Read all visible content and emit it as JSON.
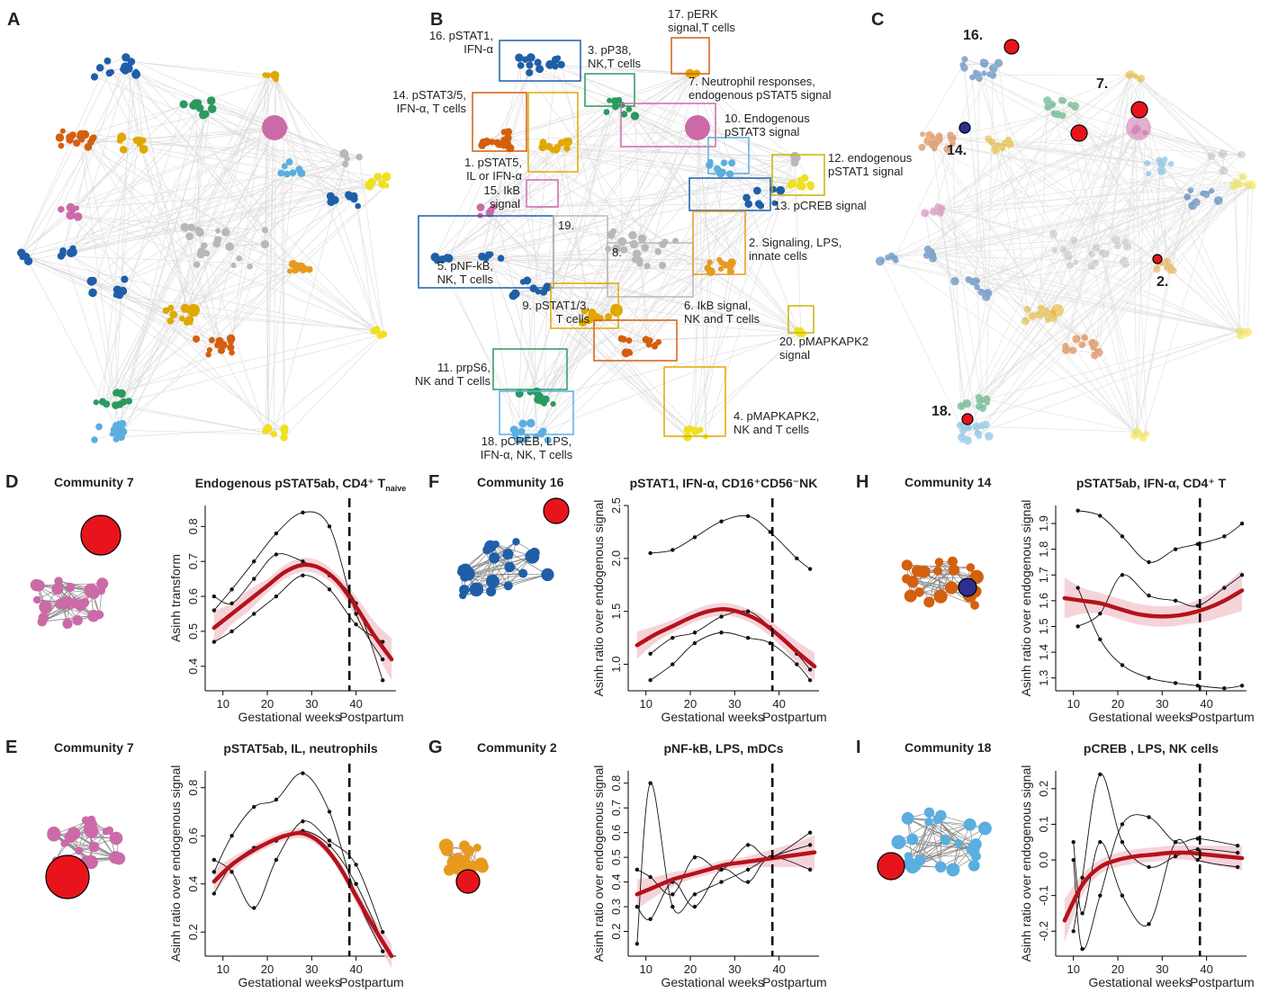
{
  "chart_data": [
    {
      "type": "network",
      "panel_label": "A"
    },
    {
      "type": "network",
      "panel_label": "B",
      "labels": [
        {
          "lines": [
            "16. pSTAT1,",
            "IFN-α"
          ],
          "color": "#1f5fa8"
        },
        {
          "lines": [
            "3. pP38,",
            "NK,T cells"
          ],
          "color": "#2a9a5e"
        },
        {
          "lines": [
            "17. pERK",
            "signal,T cells"
          ],
          "color": "#e0a800"
        },
        {
          "lines": [
            "14. pSTAT3/5,",
            "IFN-α, T cells"
          ],
          "color": "#d45f0f"
        },
        {
          "lines": [
            "7. Neutrophil responses,",
            "endogenous pSTAT5 signal"
          ],
          "color": "#cc6aa8"
        },
        {
          "lines": [
            "10. Endogenous",
            "pSTAT3 signal"
          ],
          "color": "#5aaee0"
        },
        {
          "lines": [
            "12. endogenous",
            "pSTAT1 signal"
          ],
          "color": "#c8b400"
        },
        {
          "lines": [
            "1. pSTAT5,",
            "IL or IFN-α"
          ],
          "color": "#e0a800"
        },
        {
          "lines": [
            "15. IkB",
            "signal"
          ],
          "color": "#cc6aa8"
        },
        {
          "lines": [
            "13. pCREB signal"
          ],
          "color": "#1f5fa8"
        },
        {
          "lines": [
            "19."
          ],
          "color": "#888888"
        },
        {
          "lines": [
            "8."
          ],
          "color": "#888888"
        },
        {
          "lines": [
            "2. Signaling, LPS,",
            "innate cells"
          ],
          "color": "#e89a1e"
        },
        {
          "lines": [
            "5. pNF-kB,",
            "NK, T cells"
          ],
          "color": "#1f5fa8"
        },
        {
          "lines": [
            "9. pSTAT1/3,",
            "T cells"
          ],
          "color": "#e0a800"
        },
        {
          "lines": [
            "6. IkB signal,",
            "NK and T cells"
          ],
          "color": "#d45f0f"
        },
        {
          "lines": [
            "20. pMAPKAPK2",
            "signal"
          ],
          "color": "#c8b400"
        },
        {
          "lines": [
            "11. prpS6,",
            "NK and T cells"
          ],
          "color": "#2a9a5e"
        },
        {
          "lines": [
            "4. pMAPKAPK2,",
            "NK and T cells"
          ],
          "color": "#c8b400"
        },
        {
          "lines": [
            "18. pCREB, LPS,",
            "IFN-α, NK, T cells"
          ],
          "color": "#5aaee0"
        }
      ]
    },
    {
      "type": "network",
      "panel_label": "C",
      "labels": [
        {
          "lines": [
            "16."
          ],
          "color": "#e8141c"
        },
        {
          "lines": [
            "7."
          ],
          "color": "#e8141c"
        },
        {
          "lines": [
            "14."
          ],
          "color": "#2b2f8f"
        },
        {
          "lines": [
            "2."
          ],
          "color": "#e8141c"
        },
        {
          "lines": [
            "18."
          ],
          "color": "#e8141c"
        }
      ]
    },
    {
      "type": "line",
      "panel_label": "D",
      "community": "Community 7",
      "title": "Endogenous pSTAT5ab, CD4⁺ T",
      "title_sub": "naive",
      "xlabel": "Gestational weeks",
      "xlabel2": "Postpartum",
      "ylabel": "Asinh transform",
      "xlim": [
        6,
        49
      ],
      "ylim": [
        0.33,
        0.86
      ],
      "xticks": [
        10,
        20,
        30,
        40
      ],
      "yticks": [
        0.4,
        0.5,
        0.6,
        0.7,
        0.8
      ],
      "vline": 38.5,
      "trend": {
        "color": "#b5121b",
        "band_color": "#f3c9d0",
        "x": [
          8,
          12,
          16,
          20,
          24,
          28,
          32,
          36,
          40,
          44,
          48
        ],
        "values": [
          0.51,
          0.55,
          0.59,
          0.63,
          0.67,
          0.69,
          0.68,
          0.64,
          0.57,
          0.49,
          0.42
        ],
        "lower": [
          0.46,
          0.52,
          0.56,
          0.61,
          0.65,
          0.67,
          0.66,
          0.62,
          0.54,
          0.45,
          0.36
        ],
        "upper": [
          0.56,
          0.58,
          0.62,
          0.65,
          0.69,
          0.71,
          0.7,
          0.66,
          0.6,
          0.53,
          0.48
        ]
      },
      "subject_color": "#111111",
      "subjects": [
        {
          "x": [
            8,
            12,
            17,
            22,
            28,
            34,
            40,
            46
          ],
          "values": [
            0.56,
            0.62,
            0.7,
            0.78,
            0.84,
            0.8,
            0.55,
            0.42
          ]
        },
        {
          "x": [
            8,
            12,
            17,
            22,
            28,
            34,
            40,
            46
          ],
          "values": [
            0.47,
            0.5,
            0.55,
            0.6,
            0.66,
            0.62,
            0.52,
            0.47
          ]
        },
        {
          "x": [
            8,
            12,
            17,
            22,
            28,
            34,
            40,
            46
          ],
          "values": [
            0.6,
            0.58,
            0.65,
            0.72,
            0.7,
            0.66,
            0.58,
            0.36
          ]
        }
      ]
    },
    {
      "type": "line",
      "panel_label": "E",
      "community": "Community 7",
      "title": "pSTAT5ab, IL, neutrophils",
      "xlabel": "Gestational weeks",
      "xlabel2": "Postpartum",
      "ylabel": "Asinh ratio over endogenous signal",
      "xlim": [
        6,
        49
      ],
      "ylim": [
        0.1,
        0.87
      ],
      "xticks": [
        10,
        20,
        30,
        40
      ],
      "yticks": [
        0.2,
        0.4,
        0.6,
        0.8
      ],
      "vline": 38.5,
      "trend": {
        "color": "#b5121b",
        "band_color": "#f3c9d0",
        "x": [
          8,
          12,
          16,
          20,
          24,
          28,
          32,
          36,
          40,
          44,
          48
        ],
        "values": [
          0.41,
          0.48,
          0.53,
          0.57,
          0.6,
          0.61,
          0.57,
          0.48,
          0.35,
          0.22,
          0.1
        ],
        "lower": [
          0.36,
          0.45,
          0.51,
          0.55,
          0.58,
          0.59,
          0.55,
          0.46,
          0.32,
          0.18,
          0.05
        ],
        "upper": [
          0.46,
          0.51,
          0.55,
          0.59,
          0.62,
          0.63,
          0.59,
          0.5,
          0.38,
          0.26,
          0.15
        ]
      },
      "subject_color": "#111111",
      "subjects": [
        {
          "x": [
            8,
            12,
            17,
            22,
            28,
            34,
            40,
            46
          ],
          "values": [
            0.45,
            0.6,
            0.72,
            0.75,
            0.86,
            0.7,
            0.35,
            0.12
          ]
        },
        {
          "x": [
            8,
            12,
            17,
            22,
            28,
            34,
            40,
            46
          ],
          "values": [
            0.36,
            0.48,
            0.55,
            0.58,
            0.62,
            0.56,
            0.4,
            0.16
          ]
        },
        {
          "x": [
            8,
            12,
            17,
            22,
            28,
            34,
            40,
            46
          ],
          "values": [
            0.5,
            0.45,
            0.3,
            0.5,
            0.66,
            0.58,
            0.48,
            0.2
          ]
        }
      ]
    },
    {
      "type": "line",
      "panel_label": "F",
      "community": "Community 16",
      "title": "pSTAT1, IFN-α, CD16⁺CD56⁻NK",
      "xlabel": "Gestational weeks",
      "xlabel2": "Postpartum",
      "ylabel": "Asinh ratio over endogenous signal",
      "xlim": [
        6,
        49
      ],
      "ylim": [
        0.75,
        2.5
      ],
      "xticks": [
        10,
        20,
        30,
        40
      ],
      "yticks": [
        {
          "value": 1,
          "label": "1.0"
        },
        1.5,
        {
          "value": 2,
          "label": "2.0"
        },
        2.5
      ],
      "vline": 38.5,
      "trend": {
        "color": "#b5121b",
        "band_color": "#f3c9d0",
        "x": [
          8,
          12,
          16,
          20,
          24,
          28,
          32,
          36,
          40,
          44,
          48
        ],
        "values": [
          1.18,
          1.28,
          1.36,
          1.44,
          1.5,
          1.52,
          1.48,
          1.4,
          1.27,
          1.12,
          0.98
        ],
        "lower": [
          1.05,
          1.2,
          1.3,
          1.38,
          1.44,
          1.46,
          1.42,
          1.33,
          1.19,
          1.02,
          0.85
        ],
        "upper": [
          1.31,
          1.36,
          1.42,
          1.5,
          1.56,
          1.58,
          1.54,
          1.47,
          1.35,
          1.22,
          1.11
        ]
      },
      "subject_color": "#111111",
      "subjects": [
        {
          "x": [
            11,
            16,
            21,
            27,
            33,
            38,
            44,
            47
          ],
          "values": [
            2.05,
            2.08,
            2.2,
            2.35,
            2.4,
            2.25,
            2.0,
            1.9
          ]
        },
        {
          "x": [
            11,
            16,
            21,
            27,
            33,
            38,
            44,
            47
          ],
          "values": [
            1.1,
            1.25,
            1.3,
            1.45,
            1.5,
            1.35,
            1.1,
            0.95
          ]
        },
        {
          "x": [
            11,
            16,
            21,
            27,
            33,
            38,
            44,
            47
          ],
          "values": [
            0.85,
            1.0,
            1.2,
            1.3,
            1.25,
            1.2,
            1.0,
            0.85
          ]
        }
      ]
    },
    {
      "type": "line",
      "panel_label": "G",
      "community": "Community 2",
      "title": "pNF-kB, LPS, mDCs",
      "xlabel": "Gestational weeks",
      "xlabel2": "Postpartum",
      "ylabel": "Asinh ratio over endogenous signal",
      "xlim": [
        6,
        49
      ],
      "ylim": [
        0.1,
        0.85
      ],
      "xticks": [
        10,
        20,
        30,
        40
      ],
      "yticks": [
        0.2,
        0.3,
        0.4,
        0.5,
        0.6,
        0.7,
        0.8
      ],
      "vline": 38.5,
      "trend": {
        "color": "#b5121b",
        "band_color": "#f3c9d0",
        "x": [
          8,
          12,
          16,
          20,
          24,
          28,
          32,
          36,
          40,
          44,
          48
        ],
        "values": [
          0.35,
          0.38,
          0.41,
          0.43,
          0.45,
          0.47,
          0.48,
          0.49,
          0.5,
          0.51,
          0.52
        ],
        "lower": [
          0.29,
          0.34,
          0.38,
          0.41,
          0.43,
          0.45,
          0.46,
          0.46,
          0.46,
          0.46,
          0.45
        ],
        "upper": [
          0.41,
          0.42,
          0.44,
          0.45,
          0.47,
          0.49,
          0.5,
          0.52,
          0.54,
          0.56,
          0.59
        ]
      },
      "subject_color": "#111111",
      "subjects": [
        {
          "x": [
            8,
            11,
            16,
            21,
            27,
            33,
            38,
            47
          ],
          "values": [
            0.15,
            0.8,
            0.3,
            0.35,
            0.4,
            0.45,
            0.5,
            0.55
          ]
        },
        {
          "x": [
            8,
            11,
            16,
            21,
            27,
            33,
            38,
            47
          ],
          "values": [
            0.45,
            0.42,
            0.35,
            0.5,
            0.45,
            0.55,
            0.5,
            0.6
          ]
        },
        {
          "x": [
            8,
            11,
            16,
            21,
            27,
            33,
            38,
            47
          ],
          "values": [
            0.3,
            0.25,
            0.4,
            0.3,
            0.45,
            0.4,
            0.5,
            0.45
          ]
        }
      ]
    },
    {
      "type": "line",
      "panel_label": "H",
      "community": "Community 14",
      "title": "pSTAT5ab, IFN-α, CD4⁺ T",
      "xlabel": "Gestational weeks",
      "xlabel2": "Postpartum",
      "ylabel": "Asinh ratio over endogenous signal",
      "xlim": [
        6,
        49
      ],
      "ylim": [
        1.25,
        1.97
      ],
      "xticks": [
        10,
        20,
        30,
        40
      ],
      "yticks": [
        1.3,
        1.4,
        1.5,
        1.6,
        1.7,
        1.8,
        1.9
      ],
      "vline": 38.5,
      "trend": {
        "color": "#b5121b",
        "band_color": "#f3c9d0",
        "x": [
          8,
          12,
          16,
          20,
          24,
          28,
          32,
          36,
          40,
          44,
          48
        ],
        "values": [
          1.61,
          1.6,
          1.59,
          1.57,
          1.55,
          1.54,
          1.54,
          1.55,
          1.57,
          1.6,
          1.64
        ],
        "lower": [
          1.53,
          1.55,
          1.55,
          1.53,
          1.51,
          1.5,
          1.5,
          1.51,
          1.52,
          1.54,
          1.56
        ],
        "upper": [
          1.69,
          1.65,
          1.63,
          1.61,
          1.59,
          1.58,
          1.58,
          1.59,
          1.62,
          1.66,
          1.72
        ]
      },
      "subject_color": "#111111",
      "subjects": [
        {
          "x": [
            11,
            16,
            21,
            27,
            33,
            38,
            44,
            48
          ],
          "values": [
            1.95,
            1.93,
            1.85,
            1.75,
            1.8,
            1.82,
            1.85,
            1.9
          ]
        },
        {
          "x": [
            11,
            16,
            21,
            27,
            33,
            38,
            44,
            48
          ],
          "values": [
            1.5,
            1.55,
            1.7,
            1.62,
            1.6,
            1.58,
            1.65,
            1.7
          ]
        },
        {
          "x": [
            11,
            16,
            21,
            27,
            33,
            38,
            44,
            48
          ],
          "values": [
            1.65,
            1.45,
            1.35,
            1.3,
            1.28,
            1.27,
            1.26,
            1.27
          ]
        }
      ]
    },
    {
      "type": "line",
      "panel_label": "I",
      "community": "Community 18",
      "title": "pCREB , LPS, NK cells",
      "xlabel": "Gestational weeks",
      "xlabel2": "Postpartum",
      "ylabel": "Asinh ratio over endogenous signal",
      "xlim": [
        6,
        49
      ],
      "ylim": [
        -0.27,
        0.25
      ],
      "xticks": [
        10,
        20,
        30,
        40
      ],
      "yticks": [
        -0.2,
        -0.1,
        {
          "value": 0,
          "label": "0.0"
        },
        0.1,
        0.2
      ],
      "vline": 38.5,
      "trend": {
        "color": "#b5121b",
        "band_color": "#f3c9d0",
        "x": [
          8,
          12,
          16,
          20,
          24,
          28,
          32,
          36,
          40,
          44,
          48
        ],
        "values": [
          -0.17,
          -0.07,
          -0.02,
          0.0,
          0.01,
          0.015,
          0.02,
          0.02,
          0.015,
          0.01,
          0.005
        ],
        "lower": [
          -0.23,
          -0.1,
          -0.04,
          -0.02,
          -0.01,
          -0.005,
          0.0,
          0.0,
          -0.01,
          -0.02,
          -0.03
        ],
        "upper": [
          -0.11,
          -0.04,
          0.0,
          0.02,
          0.03,
          0.035,
          0.04,
          0.04,
          0.04,
          0.04,
          0.04
        ]
      },
      "subject_color": "#111111",
      "subjects": [
        {
          "x": [
            10,
            12,
            16,
            21,
            27,
            33,
            38,
            47
          ],
          "values": [
            -0.2,
            -0.05,
            0.24,
            0.05,
            -0.02,
            0.01,
            0.03,
            0.02
          ]
        },
        {
          "x": [
            10,
            12,
            16,
            21,
            27,
            33,
            38,
            47
          ],
          "values": [
            0.0,
            -0.25,
            -0.1,
            0.1,
            0.12,
            0.05,
            0.06,
            0.04
          ]
        },
        {
          "x": [
            10,
            12,
            16,
            21,
            27,
            33,
            38,
            47
          ],
          "values": [
            0.05,
            -0.15,
            0.05,
            -0.1,
            -0.18,
            0.05,
            0.0,
            -0.02
          ]
        }
      ]
    }
  ]
}
